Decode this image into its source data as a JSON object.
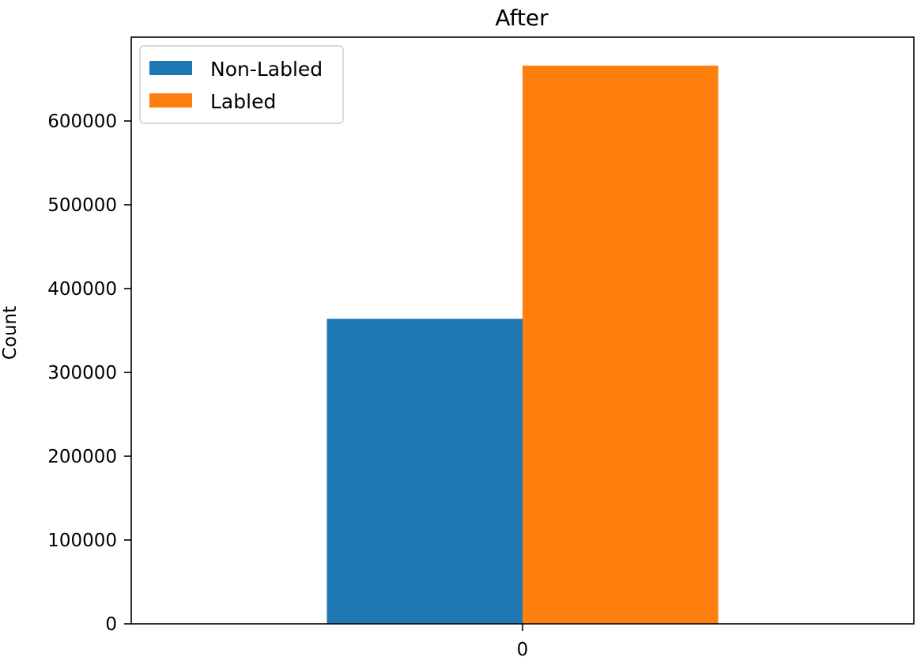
{
  "chart_data": {
    "type": "bar",
    "title": "After",
    "xlabel": "",
    "ylabel": "Count",
    "categories": [
      "0"
    ],
    "series": [
      {
        "name": "Non-Labled",
        "values": [
          364000
        ],
        "color": "#1f77b4"
      },
      {
        "name": "Labled",
        "values": [
          666000
        ],
        "color": "#ff7f0e"
      }
    ],
    "ylim": [
      0,
      700000
    ],
    "yticks": [
      0,
      100000,
      200000,
      300000,
      400000,
      500000,
      600000
    ],
    "ytick_labels": [
      "0",
      "100000",
      "200000",
      "300000",
      "400000",
      "500000",
      "600000"
    ],
    "grid": false,
    "legend_position": "top-left"
  }
}
